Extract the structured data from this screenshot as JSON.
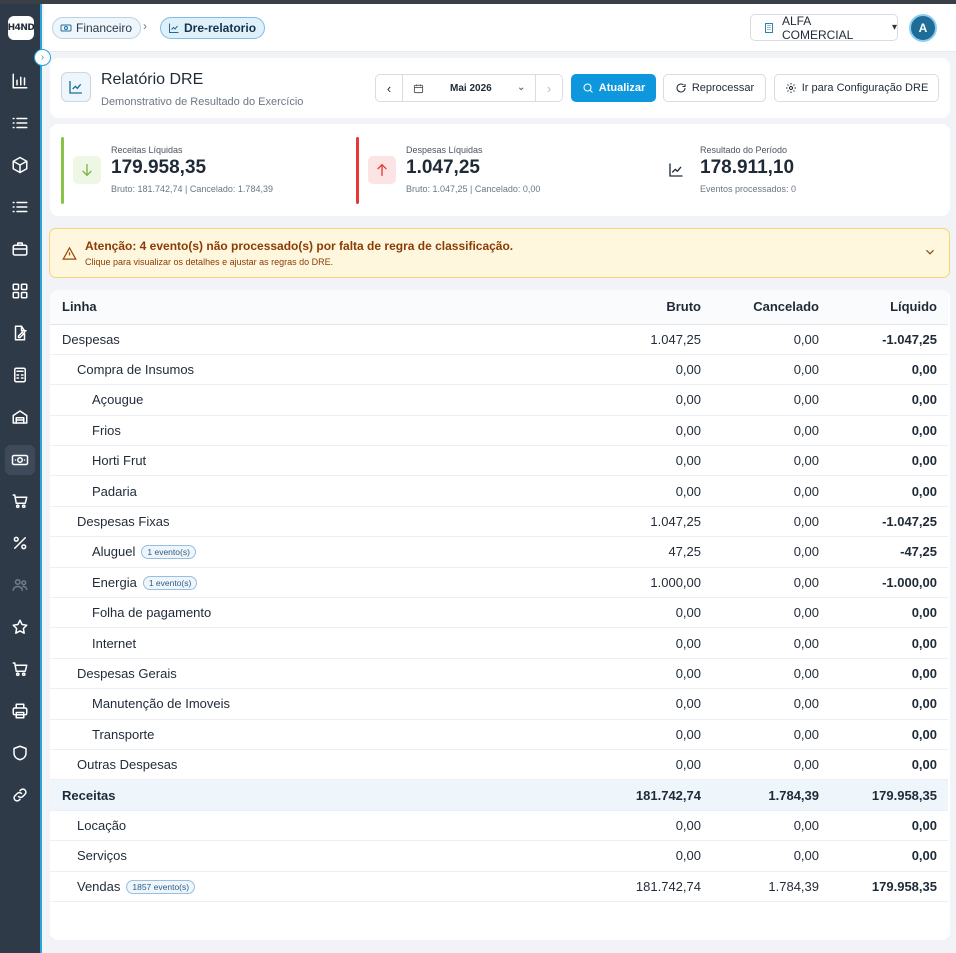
{
  "app": {
    "logo_text": "H4ND"
  },
  "sidebar": {
    "icons": [
      "bar-chart-icon",
      "list-icon",
      "box-icon",
      "list-icon",
      "briefcase-icon",
      "grid-icon",
      "edit-document-icon",
      "calculator-icon",
      "warehouse-icon",
      "money-icon",
      "cart-icon",
      "percent-icon",
      "users-icon",
      "star-icon",
      "cart-icon",
      "printer-icon",
      "shield-icon",
      "link-icon"
    ]
  },
  "header": {
    "breadcrumb": [
      {
        "label": "Financeiro",
        "icon": "money-icon"
      },
      {
        "label": "Dre-relatorio",
        "icon": "trending-up-icon"
      }
    ],
    "breadcrumb_separator": "›",
    "company": "ALFA COMERCIAL",
    "avatar_initial": "A"
  },
  "page": {
    "title": "Relatório DRE",
    "subtitle": "Demonstrativo de Resultado do Exercício",
    "period": "Mai 2026",
    "buttons": {
      "refresh": "Atualizar",
      "reprocess": "Reprocessar",
      "config": "Ir para Configuração DRE"
    }
  },
  "kpis": {
    "receitas": {
      "label": "Receitas Líquidas",
      "value": "179.958,35",
      "sub": "Bruto: 181.742,74 | Cancelado: 1.784,39",
      "color": "#8bc34a"
    },
    "despesas": {
      "label": "Despesas Líquidas",
      "value": "1.047,25",
      "sub": "Bruto: 1.047,25 | Cancelado: 0,00",
      "color": "#e53935"
    },
    "resultado": {
      "label": "Resultado do Período",
      "value": "178.911,10",
      "sub": "Eventos processados: 0"
    }
  },
  "alert": {
    "title": "Atenção: 4 evento(s) não processado(s) por falta de regra de classificação.",
    "text": "Clique para visualizar os detalhes e ajustar as regras do DRE."
  },
  "table": {
    "headers": {
      "linha": "Linha",
      "bruto": "Bruto",
      "cancelado": "Cancelado",
      "liquido": "Líquido"
    },
    "rows": [
      {
        "label": "Despesas",
        "level": 0,
        "bruto": "1.047,25",
        "cancelado": "0,00",
        "liquido": "-1.047,25",
        "badge": ""
      },
      {
        "label": "Compra de Insumos",
        "level": 1,
        "bruto": "0,00",
        "cancelado": "0,00",
        "liquido": "0,00",
        "badge": ""
      },
      {
        "label": "Açougue",
        "level": 2,
        "bruto": "0,00",
        "cancelado": "0,00",
        "liquido": "0,00",
        "badge": ""
      },
      {
        "label": "Frios",
        "level": 2,
        "bruto": "0,00",
        "cancelado": "0,00",
        "liquido": "0,00",
        "badge": ""
      },
      {
        "label": "Horti Frut",
        "level": 2,
        "bruto": "0,00",
        "cancelado": "0,00",
        "liquido": "0,00",
        "badge": ""
      },
      {
        "label": "Padaria",
        "level": 2,
        "bruto": "0,00",
        "cancelado": "0,00",
        "liquido": "0,00",
        "badge": ""
      },
      {
        "label": "Despesas Fixas",
        "level": 1,
        "bruto": "1.047,25",
        "cancelado": "0,00",
        "liquido": "-1.047,25",
        "badge": ""
      },
      {
        "label": "Aluguel",
        "level": 2,
        "bruto": "47,25",
        "cancelado": "0,00",
        "liquido": "-47,25",
        "badge": "1 evento(s)"
      },
      {
        "label": "Energia",
        "level": 2,
        "bruto": "1.000,00",
        "cancelado": "0,00",
        "liquido": "-1.000,00",
        "badge": "1 evento(s)"
      },
      {
        "label": "Folha de pagamento",
        "level": 2,
        "bruto": "0,00",
        "cancelado": "0,00",
        "liquido": "0,00",
        "badge": ""
      },
      {
        "label": "Internet",
        "level": 2,
        "bruto": "0,00",
        "cancelado": "0,00",
        "liquido": "0,00",
        "badge": ""
      },
      {
        "label": "Despesas Gerais",
        "level": 1,
        "bruto": "0,00",
        "cancelado": "0,00",
        "liquido": "0,00",
        "badge": ""
      },
      {
        "label": "Manutenção de Imoveis",
        "level": 2,
        "bruto": "0,00",
        "cancelado": "0,00",
        "liquido": "0,00",
        "badge": ""
      },
      {
        "label": "Transporte",
        "level": 2,
        "bruto": "0,00",
        "cancelado": "0,00",
        "liquido": "0,00",
        "badge": ""
      },
      {
        "label": "Outras Despesas",
        "level": 1,
        "bruto": "0,00",
        "cancelado": "0,00",
        "liquido": "0,00",
        "badge": ""
      },
      {
        "label": "Receitas",
        "level": 0,
        "bruto": "181.742,74",
        "cancelado": "1.784,39",
        "liquido": "179.958,35",
        "badge": "",
        "highlight": true
      },
      {
        "label": "Locação",
        "level": 1,
        "bruto": "0,00",
        "cancelado": "0,00",
        "liquido": "0,00",
        "badge": ""
      },
      {
        "label": "Serviços",
        "level": 1,
        "bruto": "0,00",
        "cancelado": "0,00",
        "liquido": "0,00",
        "badge": ""
      },
      {
        "label": "Vendas",
        "level": 1,
        "bruto": "181.742,74",
        "cancelado": "1.784,39",
        "liquido": "179.958,35",
        "badge": "1857 evento(s)"
      }
    ]
  }
}
